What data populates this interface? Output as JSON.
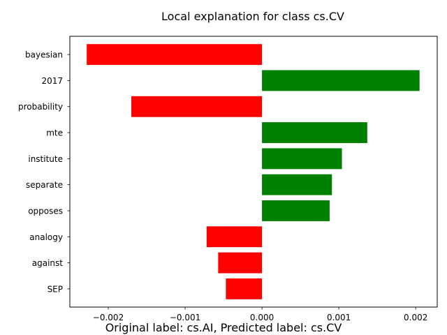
{
  "chart_data": {
    "type": "bar",
    "orientation": "horizontal",
    "title": "Local explanation for class cs.CV",
    "caption": "Original label: cs.AI, Predicted label: cs.CV",
    "categories": [
      "bayesian",
      "2017",
      "probability",
      "mte",
      "institute",
      "separate",
      "opposes",
      "analogy",
      "against",
      "SEP"
    ],
    "values": [
      -0.00228,
      0.00205,
      -0.0017,
      0.00137,
      0.00104,
      0.00091,
      0.00088,
      -0.00072,
      -0.00057,
      -0.00047
    ],
    "xlim": [
      -0.0025,
      0.00228
    ],
    "xticks": [
      -0.002,
      -0.001,
      0.0,
      0.001,
      0.002
    ],
    "xtick_labels": [
      "−0.002",
      "−0.001",
      "0.000",
      "0.001",
      "0.002"
    ],
    "grid": false,
    "colors": {
      "positive": "#008000",
      "negative": "#ff0000"
    }
  }
}
